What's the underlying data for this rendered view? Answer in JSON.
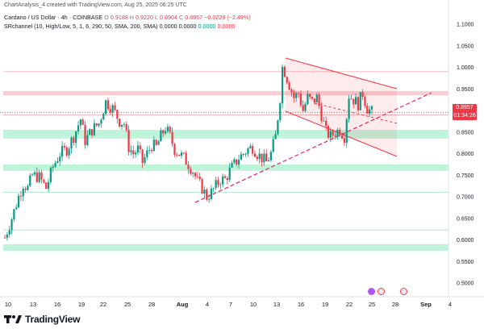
{
  "caption": "ChartAnalysis_4 created with TradingView.com, Aug 25, 2025 06:25 UTC",
  "legend": {
    "symbol": "Cardano / US Dollar · 4h · COINBASE",
    "o_label": "O",
    "o_value": "0.9188",
    "h_label": "H",
    "h_value": "0.9220",
    "l_label": "L",
    "l_value": "0.8904",
    "c_label": "C",
    "c_value": "0.8957",
    "change": "−0.0229 (−2.49%)",
    "indicator": "SRchannel (10, High/Low, 5, 1, 6, 290, 50, SMA, 200, SMA)",
    "ind_v1": "0.0000",
    "ind_v2": "0.0000",
    "ind_v3": "0.0000",
    "ind_v4": "0.0000"
  },
  "price_tag": {
    "price": "0.8957",
    "countdown": "01:34:26"
  },
  "brand": {
    "name": "TradingView"
  },
  "colors": {
    "up": "#089981",
    "down": "#f23645",
    "support": "#34e39a",
    "resistance": "#f7a3aa",
    "channel": "#f23645"
  },
  "chart_data": {
    "type": "candlestick",
    "y_ticks": [
      "1.1000",
      "1.0500",
      "1.0000",
      "0.9500",
      "0.9000",
      "0.8500",
      "0.8000",
      "0.7500",
      "0.7000",
      "0.6500",
      "0.6000",
      "0.5500",
      "0.5000"
    ],
    "x_ticks": [
      "10",
      "13",
      "16",
      "19",
      "22",
      "25",
      "28",
      "Aug",
      "4",
      "7",
      "10",
      "13",
      "16",
      "19",
      "22",
      "25",
      "28",
      "Sep",
      "4"
    ],
    "ylim": [
      0.48,
      1.13
    ],
    "zones": [
      {
        "kind": "resistance",
        "low": 0.935,
        "high": 0.945
      },
      {
        "kind": "support",
        "low": 0.835,
        "high": 0.855
      },
      {
        "kind": "support",
        "low": 0.76,
        "high": 0.775
      },
      {
        "kind": "support",
        "low": 0.575,
        "high": 0.59
      }
    ],
    "levels": [
      0.99,
      0.89,
      0.71,
      0.623
    ],
    "last_price": 0.8957,
    "path": [
      [
        0,
        0.605
      ],
      [
        3,
        0.65
      ],
      [
        6,
        0.7
      ],
      [
        8,
        0.73
      ],
      [
        10,
        0.72
      ],
      [
        12,
        0.75
      ],
      [
        15,
        0.745
      ],
      [
        18,
        0.72
      ],
      [
        21,
        0.77
      ],
      [
        24,
        0.8
      ],
      [
        27,
        0.81
      ],
      [
        30,
        0.84
      ],
      [
        33,
        0.88
      ],
      [
        35,
        0.83
      ],
      [
        38,
        0.855
      ],
      [
        41,
        0.87
      ],
      [
        44,
        0.92
      ],
      [
        47,
        0.905
      ],
      [
        50,
        0.875
      ],
      [
        52,
        0.87
      ],
      [
        54,
        0.815
      ],
      [
        56,
        0.8
      ],
      [
        58,
        0.81
      ],
      [
        60,
        0.78
      ],
      [
        62,
        0.8
      ],
      [
        64,
        0.82
      ],
      [
        66,
        0.815
      ],
      [
        68,
        0.84
      ],
      [
        70,
        0.86
      ],
      [
        72,
        0.84
      ],
      [
        74,
        0.81
      ],
      [
        76,
        0.8
      ],
      [
        78,
        0.79
      ],
      [
        80,
        0.775
      ],
      [
        82,
        0.76
      ],
      [
        84,
        0.735
      ],
      [
        86,
        0.72
      ],
      [
        88,
        0.7
      ],
      [
        90,
        0.71
      ],
      [
        92,
        0.725
      ],
      [
        94,
        0.74
      ],
      [
        96,
        0.74
      ],
      [
        98,
        0.76
      ],
      [
        100,
        0.775
      ],
      [
        102,
        0.79
      ],
      [
        104,
        0.8
      ],
      [
        106,
        0.81
      ],
      [
        108,
        0.815
      ],
      [
        110,
        0.8
      ],
      [
        112,
        0.79
      ],
      [
        114,
        0.78
      ],
      [
        116,
        0.8
      ],
      [
        118,
        0.84
      ],
      [
        120,
        0.93
      ],
      [
        121,
        1.0
      ],
      [
        122,
        0.99
      ],
      [
        124,
        0.96
      ],
      [
        126,
        0.93
      ],
      [
        128,
        0.94
      ],
      [
        130,
        0.9
      ],
      [
        132,
        0.93
      ],
      [
        134,
        0.92
      ],
      [
        136,
        0.93
      ],
      [
        138,
        0.89
      ],
      [
        140,
        0.85
      ],
      [
        142,
        0.84
      ],
      [
        144,
        0.85
      ],
      [
        146,
        0.855
      ],
      [
        148,
        0.84
      ],
      [
        150,
        0.935
      ],
      [
        152,
        0.925
      ],
      [
        154,
        0.915
      ],
      [
        156,
        0.94
      ],
      [
        158,
        0.905
      ],
      [
        160,
        0.896
      ]
    ]
  }
}
